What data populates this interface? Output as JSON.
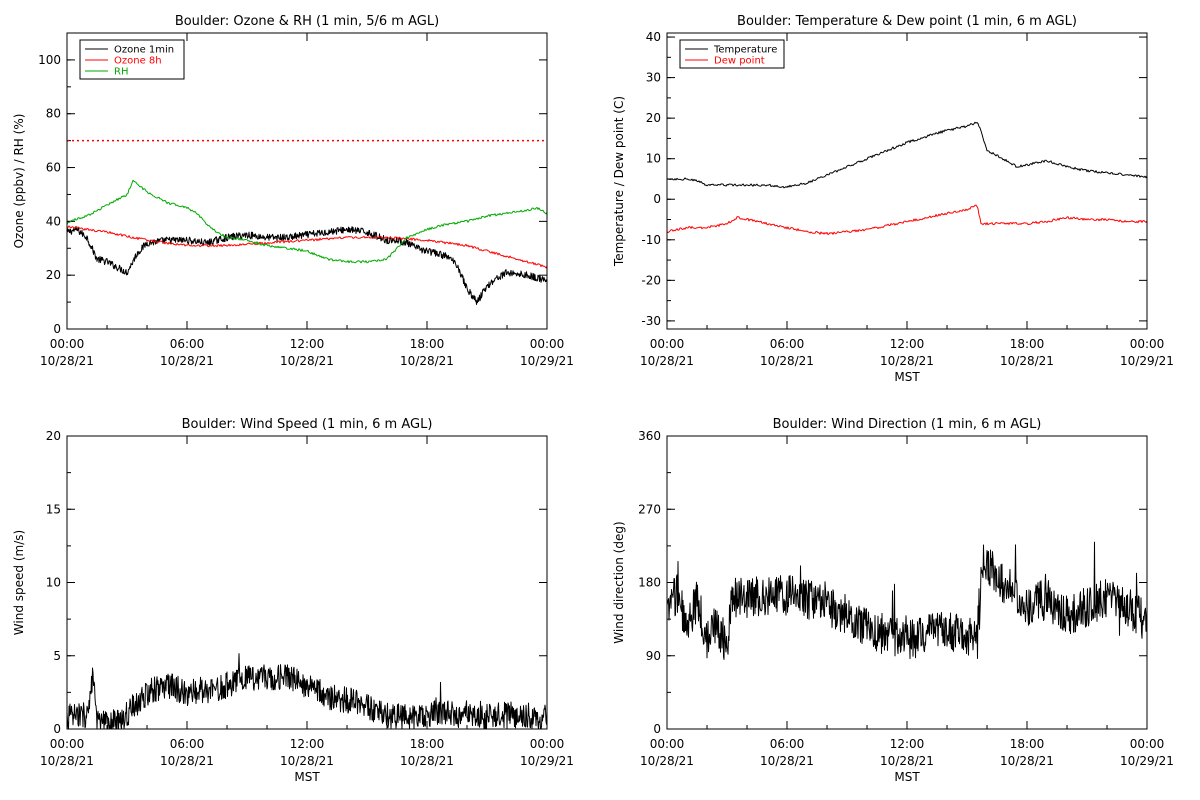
{
  "chart_data": [
    {
      "type": "line",
      "title": "Boulder: Ozone & RH (1 min, 5/6 m AGL)",
      "ylabel": "Ozone (ppbv) / RH (%)",
      "xlabel": "",
      "ylim": [
        0,
        110
      ],
      "yticks": [
        0,
        20,
        40,
        60,
        80,
        100
      ],
      "xlim": [
        0,
        24
      ],
      "xticks": [
        {
          "x": 0,
          "line1": "00:00",
          "line2": "10/28/21"
        },
        {
          "x": 6,
          "line1": "06:00",
          "line2": "10/28/21"
        },
        {
          "x": 12,
          "line1": "12:00",
          "line2": "10/28/21"
        },
        {
          "x": 18,
          "line1": "18:00",
          "line2": "10/28/21"
        },
        {
          "x": 24,
          "line1": "00:00",
          "line2": "10/29/21"
        }
      ],
      "legend_position": "top-left",
      "reference_line": {
        "y": 70,
        "color": "#ff0000",
        "style": "dotted"
      },
      "noise_series": [
        "Ozone 1min"
      ],
      "series": [
        {
          "name": "Ozone 1min",
          "color": "#000000",
          "x": [
            0,
            0.5,
            1,
            1.5,
            2,
            2.5,
            3,
            3.5,
            4,
            5,
            6,
            7,
            8,
            9,
            10,
            11,
            12,
            13,
            14,
            15,
            16,
            16.5,
            17,
            17.5,
            18,
            19,
            19.5,
            20,
            20.5,
            21,
            21.5,
            22,
            23,
            24
          ],
          "y": [
            36,
            37,
            34,
            26,
            25,
            23,
            21,
            28,
            32,
            33,
            33,
            32,
            34,
            35,
            34,
            34,
            35,
            36,
            37,
            36,
            33,
            33,
            32,
            30,
            29,
            27,
            24,
            15,
            10,
            16,
            19,
            21,
            20,
            18
          ]
        },
        {
          "name": "Ozone 8h",
          "color": "#ff0000",
          "x": [
            0,
            2,
            4,
            6,
            8,
            10,
            12,
            14,
            16,
            18,
            20,
            22,
            24
          ],
          "y": [
            38,
            36,
            33,
            31,
            31,
            32,
            33,
            34,
            34,
            33,
            31,
            27,
            23
          ]
        },
        {
          "name": "RH",
          "color": "#00aa00",
          "x": [
            0,
            0.5,
            1,
            1.5,
            2,
            2.5,
            3,
            3.3,
            4,
            5,
            6,
            6.5,
            7,
            7.5,
            8,
            9,
            10,
            11,
            12,
            13,
            14,
            15,
            16,
            17,
            18,
            19,
            20,
            21,
            22,
            23,
            23.5,
            24
          ],
          "y": [
            39,
            41,
            42,
            44,
            46,
            48,
            50,
            55,
            51,
            47,
            45,
            43,
            39,
            36,
            34,
            33,
            31,
            30,
            29,
            26,
            25,
            25,
            26,
            34,
            37,
            39,
            40,
            42,
            43,
            44,
            45,
            43
          ]
        }
      ]
    },
    {
      "type": "line",
      "title": "Boulder: Temperature & Dew point (1 min, 6 m AGL)",
      "ylabel": "Temperature / Dew point (C)",
      "xlabel": "MST",
      "ylim": [
        -32,
        41
      ],
      "yticks": [
        -30,
        -20,
        -10,
        0,
        10,
        20,
        30,
        40
      ],
      "xlim": [
        0,
        24
      ],
      "xticks": [
        {
          "x": 0,
          "line1": "00:00",
          "line2": "10/28/21"
        },
        {
          "x": 6,
          "line1": "06:00",
          "line2": "10/28/21"
        },
        {
          "x": 12,
          "line1": "12:00",
          "line2": "10/28/21"
        },
        {
          "x": 18,
          "line1": "18:00",
          "line2": "10/28/21"
        },
        {
          "x": 24,
          "line1": "00:00",
          "line2": "10/29/21"
        }
      ],
      "legend_position": "top-left",
      "noise_series": [],
      "series": [
        {
          "name": "Temperature",
          "color": "#000000",
          "x": [
            0,
            1,
            1.5,
            2,
            3,
            4,
            5,
            6,
            6.5,
            7,
            8,
            9,
            10,
            11,
            12,
            13,
            14,
            15,
            15.5,
            15.7,
            16,
            17,
            17.5,
            18,
            19,
            20,
            21,
            22,
            23,
            24
          ],
          "y": [
            5,
            5,
            4.5,
            3.5,
            3.5,
            3.5,
            3.5,
            3,
            3.5,
            4,
            6,
            8,
            10,
            12,
            14,
            15.5,
            17,
            18,
            19,
            17,
            12,
            9.5,
            8,
            8.5,
            9.5,
            8,
            7,
            6.5,
            6,
            5.5
          ]
        },
        {
          "name": "Dew point",
          "color": "#ff0000",
          "x": [
            0,
            1,
            2,
            3,
            3.5,
            4,
            5,
            6,
            7,
            8,
            9,
            10,
            11,
            12,
            13,
            14,
            15,
            15.5,
            15.7,
            16,
            17,
            18,
            19,
            20,
            21,
            22,
            23,
            24
          ],
          "y": [
            -8,
            -7,
            -7,
            -6,
            -4.5,
            -5,
            -6,
            -7,
            -8,
            -8.5,
            -8,
            -7.5,
            -6.5,
            -5.5,
            -4.5,
            -3.5,
            -2.5,
            -1.5,
            -6,
            -6,
            -6,
            -6,
            -5.5,
            -4.5,
            -5,
            -5,
            -5.5,
            -5.5
          ]
        }
      ]
    },
    {
      "type": "line",
      "title": "Boulder: Wind Speed (1 min, 6 m AGL)",
      "ylabel": "Wind speed (m/s)",
      "xlabel": "MST",
      "ylim": [
        0,
        20
      ],
      "yticks": [
        0,
        5,
        10,
        15,
        20
      ],
      "xlim": [
        0,
        24
      ],
      "xticks": [
        {
          "x": 0,
          "line1": "00:00",
          "line2": "10/28/21"
        },
        {
          "x": 6,
          "line1": "06:00",
          "line2": "10/28/21"
        },
        {
          "x": 12,
          "line1": "12:00",
          "line2": "10/28/21"
        },
        {
          "x": 18,
          "line1": "18:00",
          "line2": "10/28/21"
        },
        {
          "x": 24,
          "line1": "00:00",
          "line2": "10/29/21"
        }
      ],
      "legend_position": "",
      "noise_series": [
        "Wind speed"
      ],
      "series": [
        {
          "name": "",
          "color": "#000000",
          "x": [
            0,
            1,
            1.3,
            1.5,
            2,
            2.5,
            3,
            4,
            5,
            6,
            7,
            8,
            9,
            10,
            11,
            12,
            13,
            14,
            15,
            16,
            17,
            18,
            19,
            20,
            21,
            22,
            23,
            24
          ],
          "y": [
            0.8,
            1,
            3.5,
            0.5,
            0.3,
            0.5,
            1,
            2.5,
            3,
            2.5,
            2.5,
            3,
            3.5,
            3.5,
            3.5,
            3,
            2.2,
            2,
            1.5,
            1,
            0.8,
            1,
            1.2,
            0.8,
            0.8,
            1,
            0.9,
            0.8
          ]
        }
      ]
    },
    {
      "type": "line",
      "title": "Boulder: Wind Direction (1 min, 6 m AGL)",
      "ylabel": "Wind direction (deg)",
      "xlabel": "MST",
      "ylim": [
        0,
        360
      ],
      "yticks": [
        0,
        90,
        180,
        270,
        360
      ],
      "xlim": [
        0,
        24
      ],
      "xticks": [
        {
          "x": 0,
          "line1": "00:00",
          "line2": "10/28/21"
        },
        {
          "x": 6,
          "line1": "06:00",
          "line2": "10/28/21"
        },
        {
          "x": 12,
          "line1": "12:00",
          "line2": "10/28/21"
        },
        {
          "x": 18,
          "line1": "18:00",
          "line2": "10/28/21"
        },
        {
          "x": 24,
          "line1": "00:00",
          "line2": "10/29/21"
        }
      ],
      "legend_position": "",
      "noise_series": [
        "Wind direction"
      ],
      "series": [
        {
          "name": "",
          "color": "#000000",
          "x": [
            0,
            0.5,
            1,
            1.5,
            2,
            2.5,
            3,
            3.2,
            4,
            5,
            6,
            7,
            8,
            9,
            10,
            11,
            12,
            13,
            14,
            15,
            15.5,
            15.8,
            16,
            17,
            18,
            19,
            20,
            21,
            22,
            23,
            24
          ],
          "y": [
            140,
            170,
            120,
            160,
            110,
            130,
            100,
            160,
            160,
            165,
            165,
            160,
            150,
            140,
            125,
            115,
            110,
            115,
            120,
            115,
            120,
            205,
            200,
            175,
            150,
            160,
            140,
            150,
            160,
            150,
            130
          ]
        }
      ]
    }
  ]
}
